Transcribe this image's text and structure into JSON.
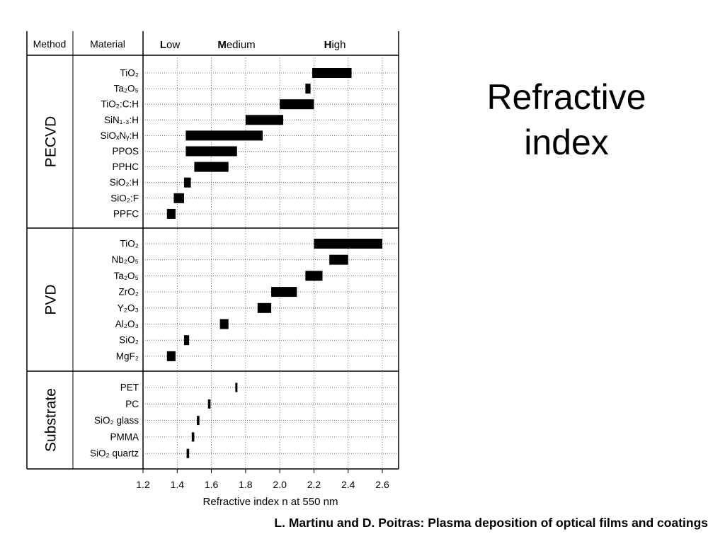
{
  "slide": {
    "title_line1": "Refractive",
    "title_line2": "index",
    "citation": "L. Martinu and D. Poitras: Plasma deposition of optical films and coatings"
  },
  "chart_data": {
    "type": "bar",
    "orientation": "horizontal-range",
    "xlabel": "Refractive index n at 550 nm",
    "xlim": [
      1.2,
      2.6
    ],
    "xticks": [
      1.2,
      1.4,
      1.6,
      1.8,
      2.0,
      2.2,
      2.4,
      2.6
    ],
    "grid": "dotted horizontal guides per row",
    "column_headers": {
      "method": "Method",
      "material": "Material"
    },
    "ranges_header": [
      {
        "first": "L",
        "rest": "ow"
      },
      {
        "first": "M",
        "rest": "edium"
      },
      {
        "first": "H",
        "rest": "igh"
      }
    ],
    "groups": [
      {
        "method": "PECVD",
        "rows": [
          {
            "material": "TiO₂",
            "min": 2.19,
            "max": 2.42
          },
          {
            "material": "Ta₂O₅",
            "min": 2.15,
            "max": 2.18
          },
          {
            "material": "TiO₂:C:H",
            "min": 2.0,
            "max": 2.2
          },
          {
            "material": "SiN₁.₃:H",
            "min": 1.8,
            "max": 2.02
          },
          {
            "material": "SiOₓNᵧ:H",
            "min": 1.45,
            "max": 1.9
          },
          {
            "material": "PPOS",
            "min": 1.45,
            "max": 1.75
          },
          {
            "material": "PPHC",
            "min": 1.5,
            "max": 1.7
          },
          {
            "material": "SiO₂:H",
            "min": 1.44,
            "max": 1.48
          },
          {
            "material": "SiO₂:F",
            "min": 1.38,
            "max": 1.44
          },
          {
            "material": "PPFC",
            "min": 1.34,
            "max": 1.39
          }
        ]
      },
      {
        "method": "PVD",
        "rows": [
          {
            "material": "TiO₂",
            "min": 2.2,
            "max": 2.6
          },
          {
            "material": "Nb₂O₅",
            "min": 2.29,
            "max": 2.4
          },
          {
            "material": "Ta₂O₅",
            "min": 2.15,
            "max": 2.25
          },
          {
            "material": "ZrO₂",
            "min": 1.95,
            "max": 2.1
          },
          {
            "material": "Y₂O₃",
            "min": 1.87,
            "max": 1.95
          },
          {
            "material": "Al₂O₃",
            "min": 1.65,
            "max": 1.7
          },
          {
            "material": "SiO₂",
            "min": 1.44,
            "max": 1.47
          },
          {
            "material": "MgF₂",
            "min": 1.34,
            "max": 1.39
          }
        ]
      },
      {
        "method": "Substrate",
        "rows": [
          {
            "material": "PET",
            "min": 1.74,
            "max": 1.75
          },
          {
            "material": "PC",
            "min": 1.58,
            "max": 1.595
          },
          {
            "material": "SiO₂ glass",
            "min": 1.515,
            "max": 1.53
          },
          {
            "material": "PMMA",
            "min": 1.485,
            "max": 1.5
          },
          {
            "material": "SiO₂ quartz",
            "min": 1.455,
            "max": 1.47
          }
        ]
      }
    ],
    "bar_color": "#000000"
  }
}
